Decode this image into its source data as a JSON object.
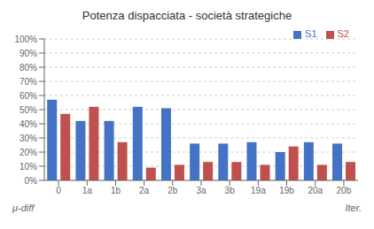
{
  "chart_data": {
    "type": "bar",
    "title": "Potenza dispacciata - società strategiche",
    "categories": [
      "0",
      "1a",
      "1b",
      "2a",
      "2b",
      "3a",
      "3b",
      "19a",
      "19b",
      "20a",
      "20b"
    ],
    "series": [
      {
        "name": "S1",
        "color": "#4472C4",
        "values": [
          0.57,
          0.42,
          0.42,
          0.52,
          0.51,
          0.26,
          0.26,
          0.27,
          0.2,
          0.27,
          0.26
        ]
      },
      {
        "name": "S2",
        "color": "#C0504D",
        "values": [
          0.47,
          0.52,
          0.27,
          0.09,
          0.11,
          0.13,
          0.13,
          0.11,
          0.24,
          0.11,
          0.13
        ]
      }
    ],
    "ylim": [
      0,
      1.0
    ],
    "yticks": [
      {
        "value": 0,
        "label": "0%"
      },
      {
        "value": 0.1,
        "label": "10%"
      },
      {
        "value": 0.2,
        "label": "20%"
      },
      {
        "value": 0.3,
        "label": "30%"
      },
      {
        "value": 0.4,
        "label": "40%"
      },
      {
        "value": 0.5,
        "label": "50%"
      },
      {
        "value": 0.6,
        "label": "60%"
      },
      {
        "value": 0.7,
        "label": "70%"
      },
      {
        "value": 0.8,
        "label": "80%"
      },
      {
        "value": 0.9,
        "label": "90%"
      },
      {
        "value": 1.0,
        "label": "100%"
      }
    ],
    "grid": true,
    "legend": "upper right",
    "annotations": [
      "μ-diff",
      "Iter."
    ]
  }
}
